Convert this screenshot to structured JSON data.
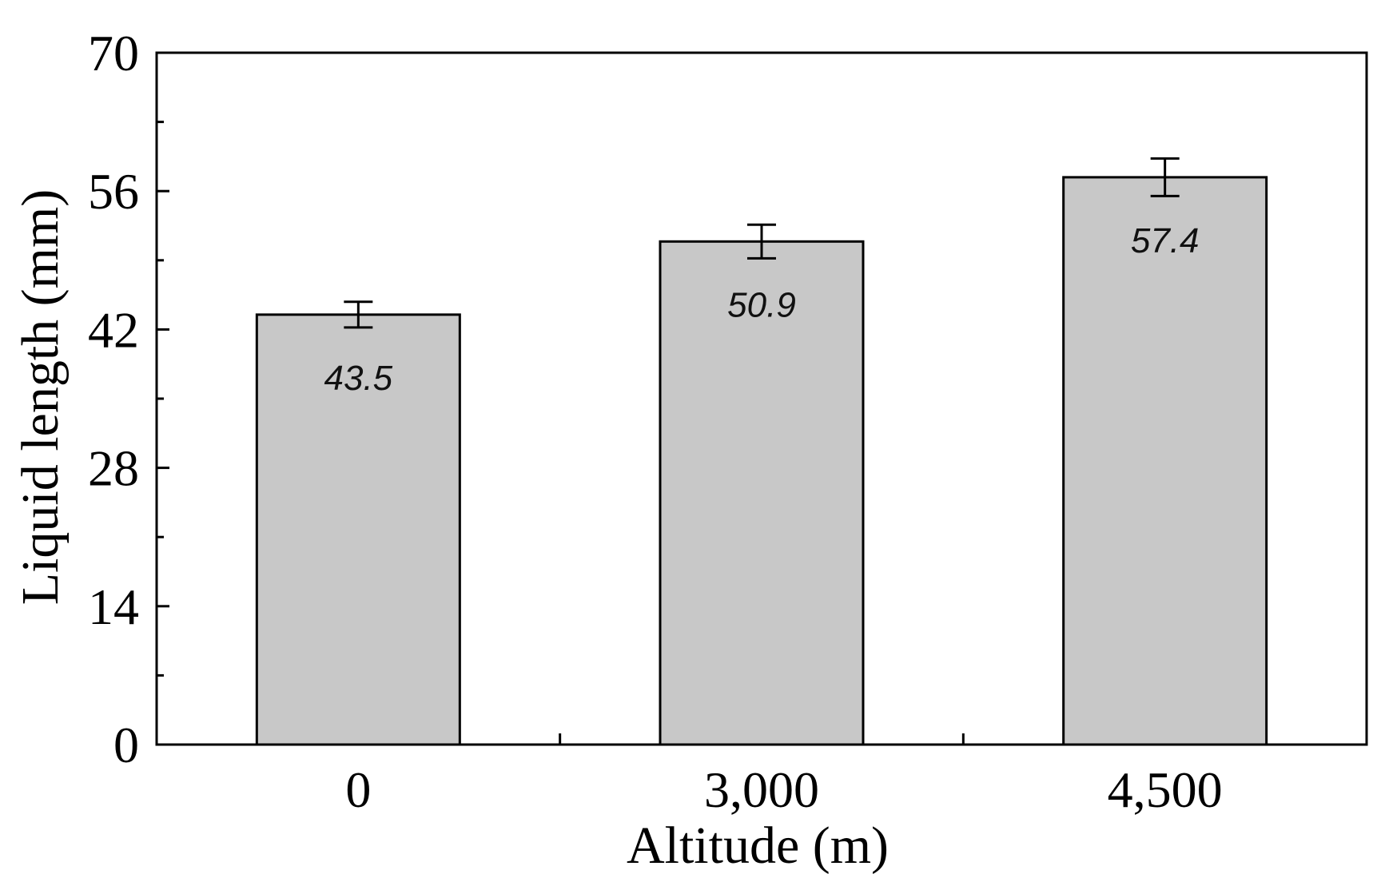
{
  "chart_data": {
    "type": "bar",
    "title": "",
    "xlabel": "Altitude (m)",
    "ylabel": "Liquid length (mm)",
    "categories": [
      "0",
      "3,000",
      "4,500"
    ],
    "values": [
      43.5,
      50.9,
      57.4
    ],
    "value_labels": [
      "43.5",
      "50.9",
      "57.4"
    ],
    "error": [
      1.3,
      1.7,
      1.9
    ],
    "ylim": [
      0,
      70
    ],
    "yticks": [
      0,
      14,
      28,
      42,
      56,
      70
    ],
    "ytick_labels": [
      "0",
      "14",
      "28",
      "42",
      "56",
      "70"
    ],
    "grid": false,
    "legend": "none",
    "colors": {
      "bar_fill": "#c8c8c8",
      "bar_stroke": "#000000",
      "axis": "#000000"
    }
  }
}
